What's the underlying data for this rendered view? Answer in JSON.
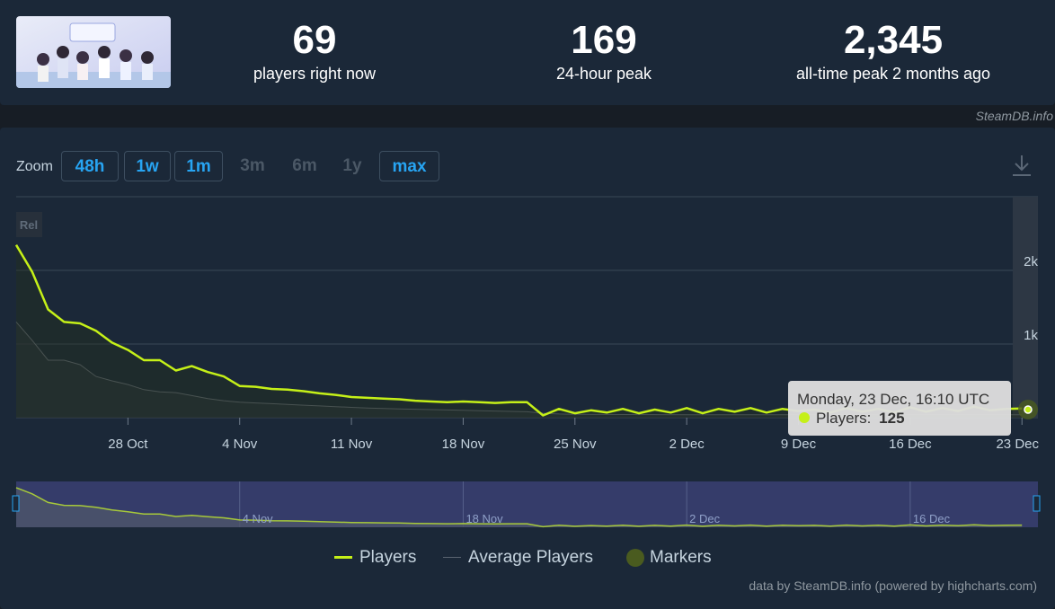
{
  "header": {
    "stats": [
      {
        "value": "69",
        "label": "players right now"
      },
      {
        "value": "169",
        "label": "24-hour peak"
      },
      {
        "value": "2,345",
        "label": "all-time peak 2 months ago"
      }
    ],
    "credit": "SteamDB.info"
  },
  "zoom": {
    "label": "Zoom",
    "buttons": [
      {
        "label": "48h",
        "active": true
      },
      {
        "label": "1w",
        "active": true
      },
      {
        "label": "1m",
        "active": true
      },
      {
        "label": "3m",
        "active": false
      },
      {
        "label": "6m",
        "active": false
      },
      {
        "label": "1y",
        "active": false
      },
      {
        "label": "max",
        "active": true
      }
    ]
  },
  "tooltip": {
    "date": "Monday, 23 Dec, 16:10 UTC",
    "series": "Players:",
    "value": "125"
  },
  "legend": {
    "players": "Players",
    "average": "Average Players",
    "markers": "Markers"
  },
  "footer": "data by SteamDB.info (powered by highcharts.com)",
  "colors": {
    "players": "#c5f018",
    "average": "#5b6470",
    "accent": "#27a4f2",
    "navigator": "#3a3f73"
  },
  "chart_data": {
    "type": "line",
    "x_unit": "date",
    "xlim": [
      "2024-10-21",
      "2024-12-24"
    ],
    "ylim": [
      0,
      3000
    ],
    "y_ticks": [
      {
        "value": 1000,
        "label": "1k"
      },
      {
        "value": 2000,
        "label": "2k"
      }
    ],
    "x_ticks": [
      {
        "date": "2024-10-28",
        "label": "28 Oct"
      },
      {
        "date": "2024-11-04",
        "label": "4 Nov"
      },
      {
        "date": "2024-11-11",
        "label": "11 Nov"
      },
      {
        "date": "2024-11-18",
        "label": "18 Nov"
      },
      {
        "date": "2024-11-25",
        "label": "25 Nov"
      },
      {
        "date": "2024-12-02",
        "label": "2 Dec"
      },
      {
        "date": "2024-12-09",
        "label": "9 Dec"
      },
      {
        "date": "2024-12-16",
        "label": "16 Dec"
      },
      {
        "date": "2024-12-23",
        "label": "23 Dec"
      }
    ],
    "navigator_ticks": [
      {
        "date": "2024-11-04",
        "label": "4 Nov"
      },
      {
        "date": "2024-11-18",
        "label": "18 Nov"
      },
      {
        "date": "2024-12-02",
        "label": "2 Dec"
      },
      {
        "date": "2024-12-16",
        "label": "16 Dec"
      }
    ],
    "release_label": "Rel",
    "series": [
      {
        "name": "Players",
        "color": "#c5f018",
        "x": [
          "2024-10-21",
          "2024-10-22",
          "2024-10-23",
          "2024-10-24",
          "2024-10-25",
          "2024-10-26",
          "2024-10-27",
          "2024-10-28",
          "2024-10-29",
          "2024-10-30",
          "2024-10-31",
          "2024-11-01",
          "2024-11-02",
          "2024-11-03",
          "2024-11-04",
          "2024-11-05",
          "2024-11-06",
          "2024-11-07",
          "2024-11-08",
          "2024-11-09",
          "2024-11-10",
          "2024-11-11",
          "2024-11-12",
          "2024-11-13",
          "2024-11-14",
          "2024-11-15",
          "2024-11-16",
          "2024-11-17",
          "2024-11-18",
          "2024-11-19",
          "2024-11-20",
          "2024-11-21",
          "2024-11-22",
          "2024-11-23",
          "2024-11-24",
          "2024-11-25",
          "2024-11-26",
          "2024-11-27",
          "2024-11-28",
          "2024-11-29",
          "2024-11-30",
          "2024-12-01",
          "2024-12-02",
          "2024-12-03",
          "2024-12-04",
          "2024-12-05",
          "2024-12-06",
          "2024-12-07",
          "2024-12-08",
          "2024-12-09",
          "2024-12-10",
          "2024-12-11",
          "2024-12-12",
          "2024-12-13",
          "2024-12-14",
          "2024-12-15",
          "2024-12-16",
          "2024-12-17",
          "2024-12-18",
          "2024-12-19",
          "2024-12-20",
          "2024-12-21",
          "2024-12-22",
          "2024-12-23"
        ],
        "y": [
          2345,
          1980,
          1470,
          1300,
          1280,
          1180,
          1020,
          920,
          780,
          780,
          640,
          700,
          620,
          560,
          430,
          420,
          390,
          380,
          360,
          330,
          310,
          280,
          270,
          260,
          250,
          230,
          220,
          210,
          220,
          210,
          200,
          210,
          210,
          30,
          120,
          60,
          100,
          70,
          120,
          60,
          110,
          70,
          130,
          60,
          120,
          80,
          130,
          70,
          120,
          90,
          110,
          70,
          130,
          80,
          120,
          70,
          140,
          80,
          130,
          90,
          150,
          100,
          120,
          125
        ]
      },
      {
        "name": "Average Players",
        "color": "#5b6470",
        "x": [
          "2024-10-21",
          "2024-10-22",
          "2024-10-23",
          "2024-10-24",
          "2024-10-25",
          "2024-10-26",
          "2024-10-27",
          "2024-10-28",
          "2024-10-29",
          "2024-10-30",
          "2024-10-31",
          "2024-11-01",
          "2024-11-02",
          "2024-11-03",
          "2024-11-04",
          "2024-11-05",
          "2024-11-06",
          "2024-11-07",
          "2024-11-08",
          "2024-11-09",
          "2024-11-10",
          "2024-11-11",
          "2024-11-12",
          "2024-11-13",
          "2024-11-14",
          "2024-11-15",
          "2024-11-16",
          "2024-11-17",
          "2024-11-18",
          "2024-11-19",
          "2024-11-20",
          "2024-11-21",
          "2024-11-22",
          "2024-11-23",
          "2024-11-24",
          "2024-11-25",
          "2024-12-02",
          "2024-12-09",
          "2024-12-16",
          "2024-12-23"
        ],
        "y": [
          1300,
          1050,
          780,
          780,
          720,
          560,
          500,
          450,
          380,
          350,
          340,
          300,
          260,
          230,
          210,
          200,
          190,
          180,
          170,
          160,
          150,
          140,
          130,
          125,
          120,
          115,
          110,
          105,
          100,
          95,
          90,
          85,
          80,
          60,
          50,
          45,
          40,
          40,
          40,
          40
        ]
      }
    ]
  }
}
